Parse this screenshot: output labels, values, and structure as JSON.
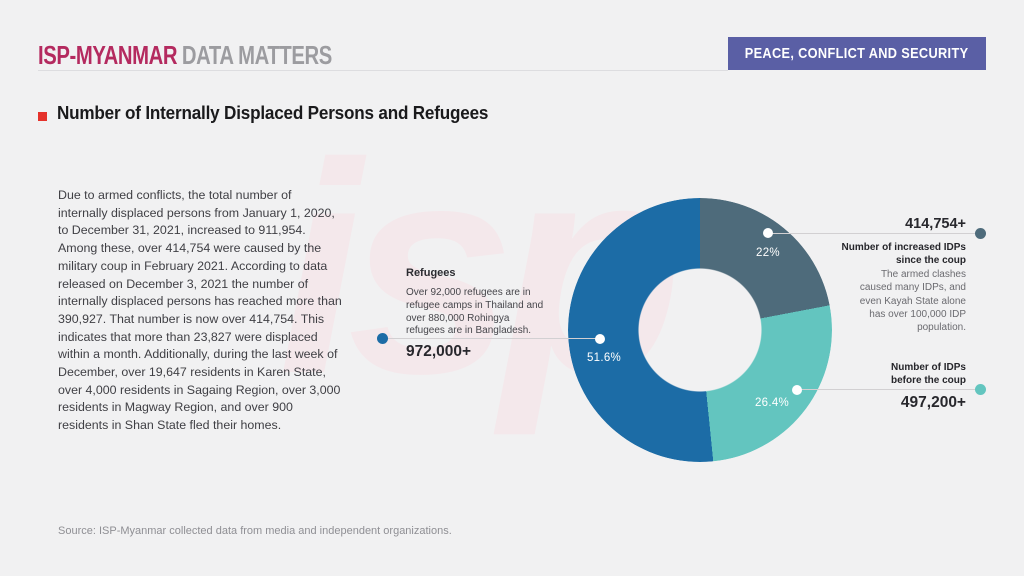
{
  "header": {
    "logo_primary": "ISP-MYANMAR",
    "logo_secondary": "DATA MATTERS",
    "logo_primary_color": "#b42a5f",
    "badge": {
      "label": "PEACE, CONFLICT AND SECURITY",
      "color": "#5a5fa5"
    }
  },
  "title": {
    "text": "Number of Internally Displaced Persons and Refugees",
    "bullet_color": "#e5322b"
  },
  "intro_paragraph": "Due to armed conflicts, the total number of internally displaced persons from January 1, 2020, to December 31, 2021, increased to 911,954. Among these, over 414,754 were caused by the military coup in February 2021. According to data released on December 3, 2021 the number of internally displaced persons has reached more than 390,927. That number is now over 414,754. This indicates that more than 23,827 were displaced within a month. Additionally, during the last week of December, over 19,647 residents in Karen State, over 4,000 residents in Sagaing Region, over 3,000 residents in Magway Region, and over 900 residents in Shan State fled their homes.",
  "watermark_text": "isp",
  "chart_data": {
    "type": "pie",
    "variant": "donut",
    "title": "Number of Internally Displaced Persons and Refugees",
    "start_angle_deg": 0,
    "direction": "clockwise",
    "inner_radius_px": 62,
    "outer_radius_px": 132,
    "segments": [
      {
        "name": "Number of increased IDPs since the coup",
        "pct": 22,
        "pct_label": "22%",
        "value": "414,754+",
        "color": "#4e6b7b",
        "note": "The armed clashes caused many IDPs, and even Kayah State alone has over 100,000 IDP population."
      },
      {
        "name": "Number of IDPs before the coup",
        "pct": 26.4,
        "pct_label": "26.4%",
        "value": "497,200+",
        "color": "#63c5bf",
        "note": ""
      },
      {
        "name": "Refugees",
        "pct": 51.6,
        "pct_label": "51.6%",
        "value": "972,000+",
        "color": "#1c6ca6",
        "note": "Over 92,000 refugees are in refugee camps in Thailand and over 880,000 Rohingya refugees are in Bangladesh."
      }
    ]
  },
  "callouts": {
    "refugees": {
      "title": "Refugees",
      "note": "Over 92,000 refugees are in refugee camps in Thailand and over 880,000 Rohingya refugees are in Bangladesh.",
      "value": "972,000+"
    },
    "increased_idps": {
      "value": "414,754+",
      "label_line1": "Number of increased IDPs",
      "label_line2": "since the coup",
      "note": "The armed clashes caused many IDPs, and even Kayah State alone has over 100,000 IDP population."
    },
    "idps_before": {
      "label_line1": "Number of IDPs",
      "label_line2": "before the coup",
      "value": "497,200+"
    }
  },
  "source": "Source: ISP-Myanmar collected data from media and independent organizations."
}
